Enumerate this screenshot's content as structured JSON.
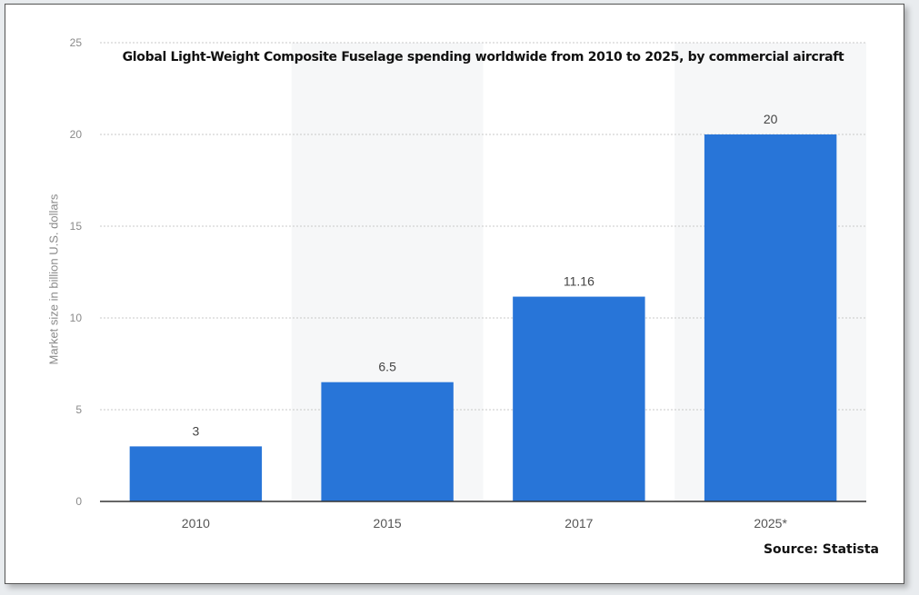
{
  "chart_data": {
    "type": "bar",
    "title": "Global Light-Weight Composite Fuselage spending worldwide from 2010 to 2025, by commercial aircraft",
    "ylabel": "Market size in billion U.S. dollars",
    "xlabel": "",
    "categories": [
      "2010",
      "2015",
      "2017",
      "2025*"
    ],
    "values": [
      3,
      6.5,
      11.16,
      20
    ],
    "value_labels": [
      "3",
      "6.5",
      "11.16",
      "20"
    ],
    "ylim": [
      0,
      25
    ],
    "yticks": [
      0,
      5,
      10,
      15,
      20,
      25
    ],
    "grid": true,
    "bar_color": "#2875d8",
    "source": "Source: Statista"
  }
}
